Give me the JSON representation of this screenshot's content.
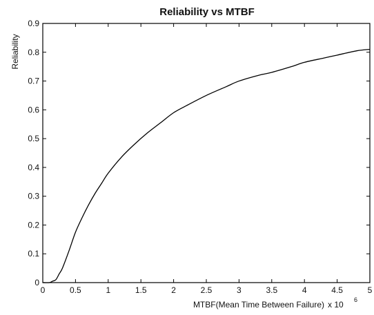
{
  "chart_data": {
    "type": "line",
    "title": "Reliability vs MTBF",
    "xlabel": "MTBF(Mean Time Between Failure)",
    "x_multiplier_label": "x 10",
    "x_multiplier_exponent": "6",
    "ylabel": "Reliability",
    "xlim": [
      0,
      5
    ],
    "ylim": [
      0,
      0.9
    ],
    "grid": false,
    "xticks": [
      0,
      0.5,
      1,
      1.5,
      2,
      2.5,
      3,
      3.5,
      4,
      4.5,
      5
    ],
    "xtick_labels": [
      "0",
      "0.5",
      "1",
      "1.5",
      "2",
      "2.5",
      "3",
      "3.5",
      "4",
      "4.5",
      "5"
    ],
    "yticks": [
      0,
      0.1,
      0.2,
      0.3,
      0.4,
      0.5,
      0.6,
      0.7,
      0.8,
      0.9
    ],
    "ytick_labels": [
      "0",
      "0.1",
      "0.2",
      "0.3",
      "0.4",
      "0.5",
      "0.6",
      "0.7",
      "0.8",
      "0.9"
    ],
    "series": [
      {
        "color": "#000000",
        "x": [
          0.0,
          0.1,
          0.15,
          0.2,
          0.25,
          0.3,
          0.4,
          0.5,
          0.6,
          0.7,
          0.8,
          0.9,
          1.0,
          1.2,
          1.4,
          1.6,
          1.8,
          2.0,
          2.2,
          2.5,
          2.8,
          3.0,
          3.3,
          3.5,
          3.8,
          4.0,
          4.3,
          4.5,
          4.8,
          5.0
        ],
        "y": [
          0.0,
          0.0,
          0.005,
          0.01,
          0.03,
          0.05,
          0.11,
          0.175,
          0.225,
          0.27,
          0.31,
          0.345,
          0.38,
          0.435,
          0.48,
          0.52,
          0.555,
          0.59,
          0.615,
          0.65,
          0.68,
          0.7,
          0.72,
          0.73,
          0.75,
          0.765,
          0.78,
          0.79,
          0.805,
          0.81
        ]
      }
    ]
  }
}
